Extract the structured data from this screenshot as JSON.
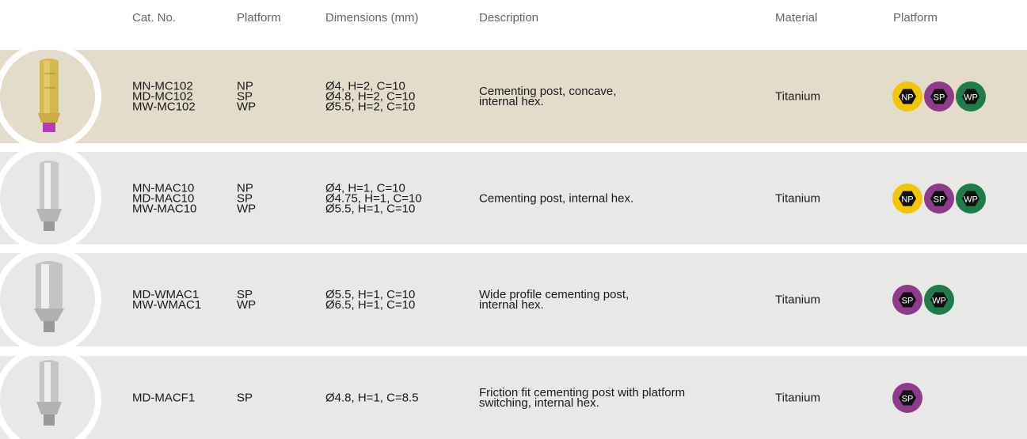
{
  "table": {
    "headers": [
      "Cat. No.",
      "Platform",
      "Dimensions (mm)",
      "Description",
      "Material",
      "Platform"
    ],
    "rows": [
      {
        "cat_nos": [
          "MN-MC102",
          "MD-MC102",
          "MW-MC102"
        ],
        "platforms": [
          "NP",
          "SP",
          "WP"
        ],
        "dimensions": [
          "Ø4, H=2, C=10",
          "Ø4.8, H=2, C=10",
          "Ø5.5, H=2, C=10"
        ],
        "description": [
          "Cementing post, concave,",
          "internal hex."
        ],
        "material": "Titanium",
        "badges": [
          {
            "label": "NP",
            "color": "#f3c600"
          },
          {
            "label": "SP",
            "color": "#8f3b8c"
          },
          {
            "label": "WP",
            "color": "#1f7b47"
          }
        ]
      },
      {
        "cat_nos": [
          "MN-MAC10",
          "MD-MAC10",
          "MW-MAC10"
        ],
        "platforms": [
          "NP",
          "SP",
          "WP"
        ],
        "dimensions": [
          "Ø4, H=1, C=10",
          "Ø4.75, H=1, C=10",
          "Ø5.5, H=1, C=10"
        ],
        "description": [
          "Cementing post, internal hex."
        ],
        "material": "Titanium",
        "badges": [
          {
            "label": "NP",
            "color": "#f3c600"
          },
          {
            "label": "SP",
            "color": "#8f3b8c"
          },
          {
            "label": "WP",
            "color": "#1f7b47"
          }
        ]
      },
      {
        "cat_nos": [
          "MD-WMAC1",
          "MW-WMAC1"
        ],
        "platforms": [
          "SP",
          "WP"
        ],
        "dimensions": [
          "Ø5.5, H=1, C=10",
          "Ø6.5, H=1, C=10"
        ],
        "description": [
          "Wide profile cementing post,",
          "internal hex."
        ],
        "material": "Titanium",
        "badges": [
          {
            "label": "SP",
            "color": "#8f3b8c"
          },
          {
            "label": "WP",
            "color": "#1f7b47"
          }
        ]
      },
      {
        "cat_nos": [
          "MD-MACF1"
        ],
        "platforms": [
          "SP"
        ],
        "dimensions": [
          "Ø4.8, H=1, C=8.5"
        ],
        "description": [
          "Friction fit cementing post with platform",
          "switching, internal hex."
        ],
        "material": "Titanium",
        "badges": [
          {
            "label": "SP",
            "color": "#8f3b8c"
          }
        ]
      }
    ]
  }
}
